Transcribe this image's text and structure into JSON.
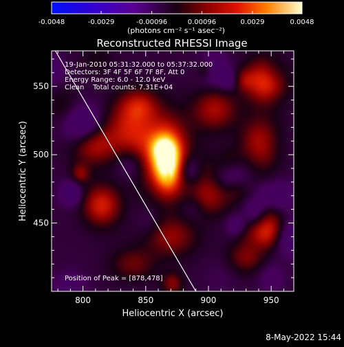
{
  "chart_data": {
    "type": "heatmap",
    "title": "Reconstructed RHESSI Image",
    "xlabel": "Heliocentric X (arcsec)",
    "ylabel": "Heliocentric Y (arcsec)",
    "xlim": [
      775,
      968
    ],
    "ylim": [
      400,
      576
    ],
    "x_ticks": [
      800,
      850,
      900,
      950
    ],
    "y_ticks": [
      450,
      500,
      550
    ],
    "colorbar": {
      "min": -0.0048,
      "max": 0.0048,
      "ticks": [
        {
          "value": -0.0048,
          "label": "-0.0048"
        },
        {
          "value": -0.0029,
          "label": "-0.0029"
        },
        {
          "value": -0.00096,
          "label": "-0.00096"
        },
        {
          "value": 0.00096,
          "label": "0.00096"
        },
        {
          "value": 0.0029,
          "label": "0.0029"
        },
        {
          "value": 0.0048,
          "label": "0.0048"
        }
      ],
      "units_label": "(photons cm⁻² s⁻¹ asec⁻²)"
    },
    "annotations": [
      "19-Jan-2010 05:31:32.000 to 05:37:32.000",
      "Detectors: 3F 4F 5F 6F 7F 8F, Att 0",
      "Energy Range: 6.0 - 12.0 keV",
      "Clean    Total counts: 7.31E+04"
    ],
    "peak_label": "Position of Peak = [878,478]",
    "peak": [
      878,
      478
    ],
    "limb_line": [
      [
        778,
        576
      ],
      [
        890,
        400
      ]
    ],
    "sources": [
      {
        "x": 868,
        "y": 493,
        "sx": 8,
        "sy": 14,
        "amp": 1.0
      },
      {
        "x": 860,
        "y": 504,
        "sx": 16,
        "sy": 18,
        "amp": 0.55
      },
      {
        "x": 845,
        "y": 536,
        "sx": 10,
        "sy": 8,
        "amp": 0.35
      },
      {
        "x": 815,
        "y": 463,
        "sx": 10,
        "sy": 10,
        "amp": 0.5
      },
      {
        "x": 808,
        "y": 508,
        "sx": 12,
        "sy": 10,
        "amp": 0.45
      },
      {
        "x": 835,
        "y": 520,
        "sx": 12,
        "sy": 14,
        "amp": 0.35
      },
      {
        "x": 900,
        "y": 470,
        "sx": 12,
        "sy": 10,
        "amp": 0.35
      },
      {
        "x": 905,
        "y": 533,
        "sx": 12,
        "sy": 10,
        "amp": 0.38
      },
      {
        "x": 940,
        "y": 510,
        "sx": 10,
        "sy": 12,
        "amp": 0.35
      },
      {
        "x": 950,
        "y": 450,
        "sx": 8,
        "sy": 10,
        "amp": 0.3
      },
      {
        "x": 930,
        "y": 425,
        "sx": 10,
        "sy": 8,
        "amp": 0.28
      },
      {
        "x": 870,
        "y": 440,
        "sx": 14,
        "sy": 10,
        "amp": 0.33
      },
      {
        "x": 840,
        "y": 420,
        "sx": 12,
        "sy": 8,
        "amp": 0.25
      }
    ]
  },
  "footer": {
    "timestamp": "8-May-2022 15:44"
  }
}
